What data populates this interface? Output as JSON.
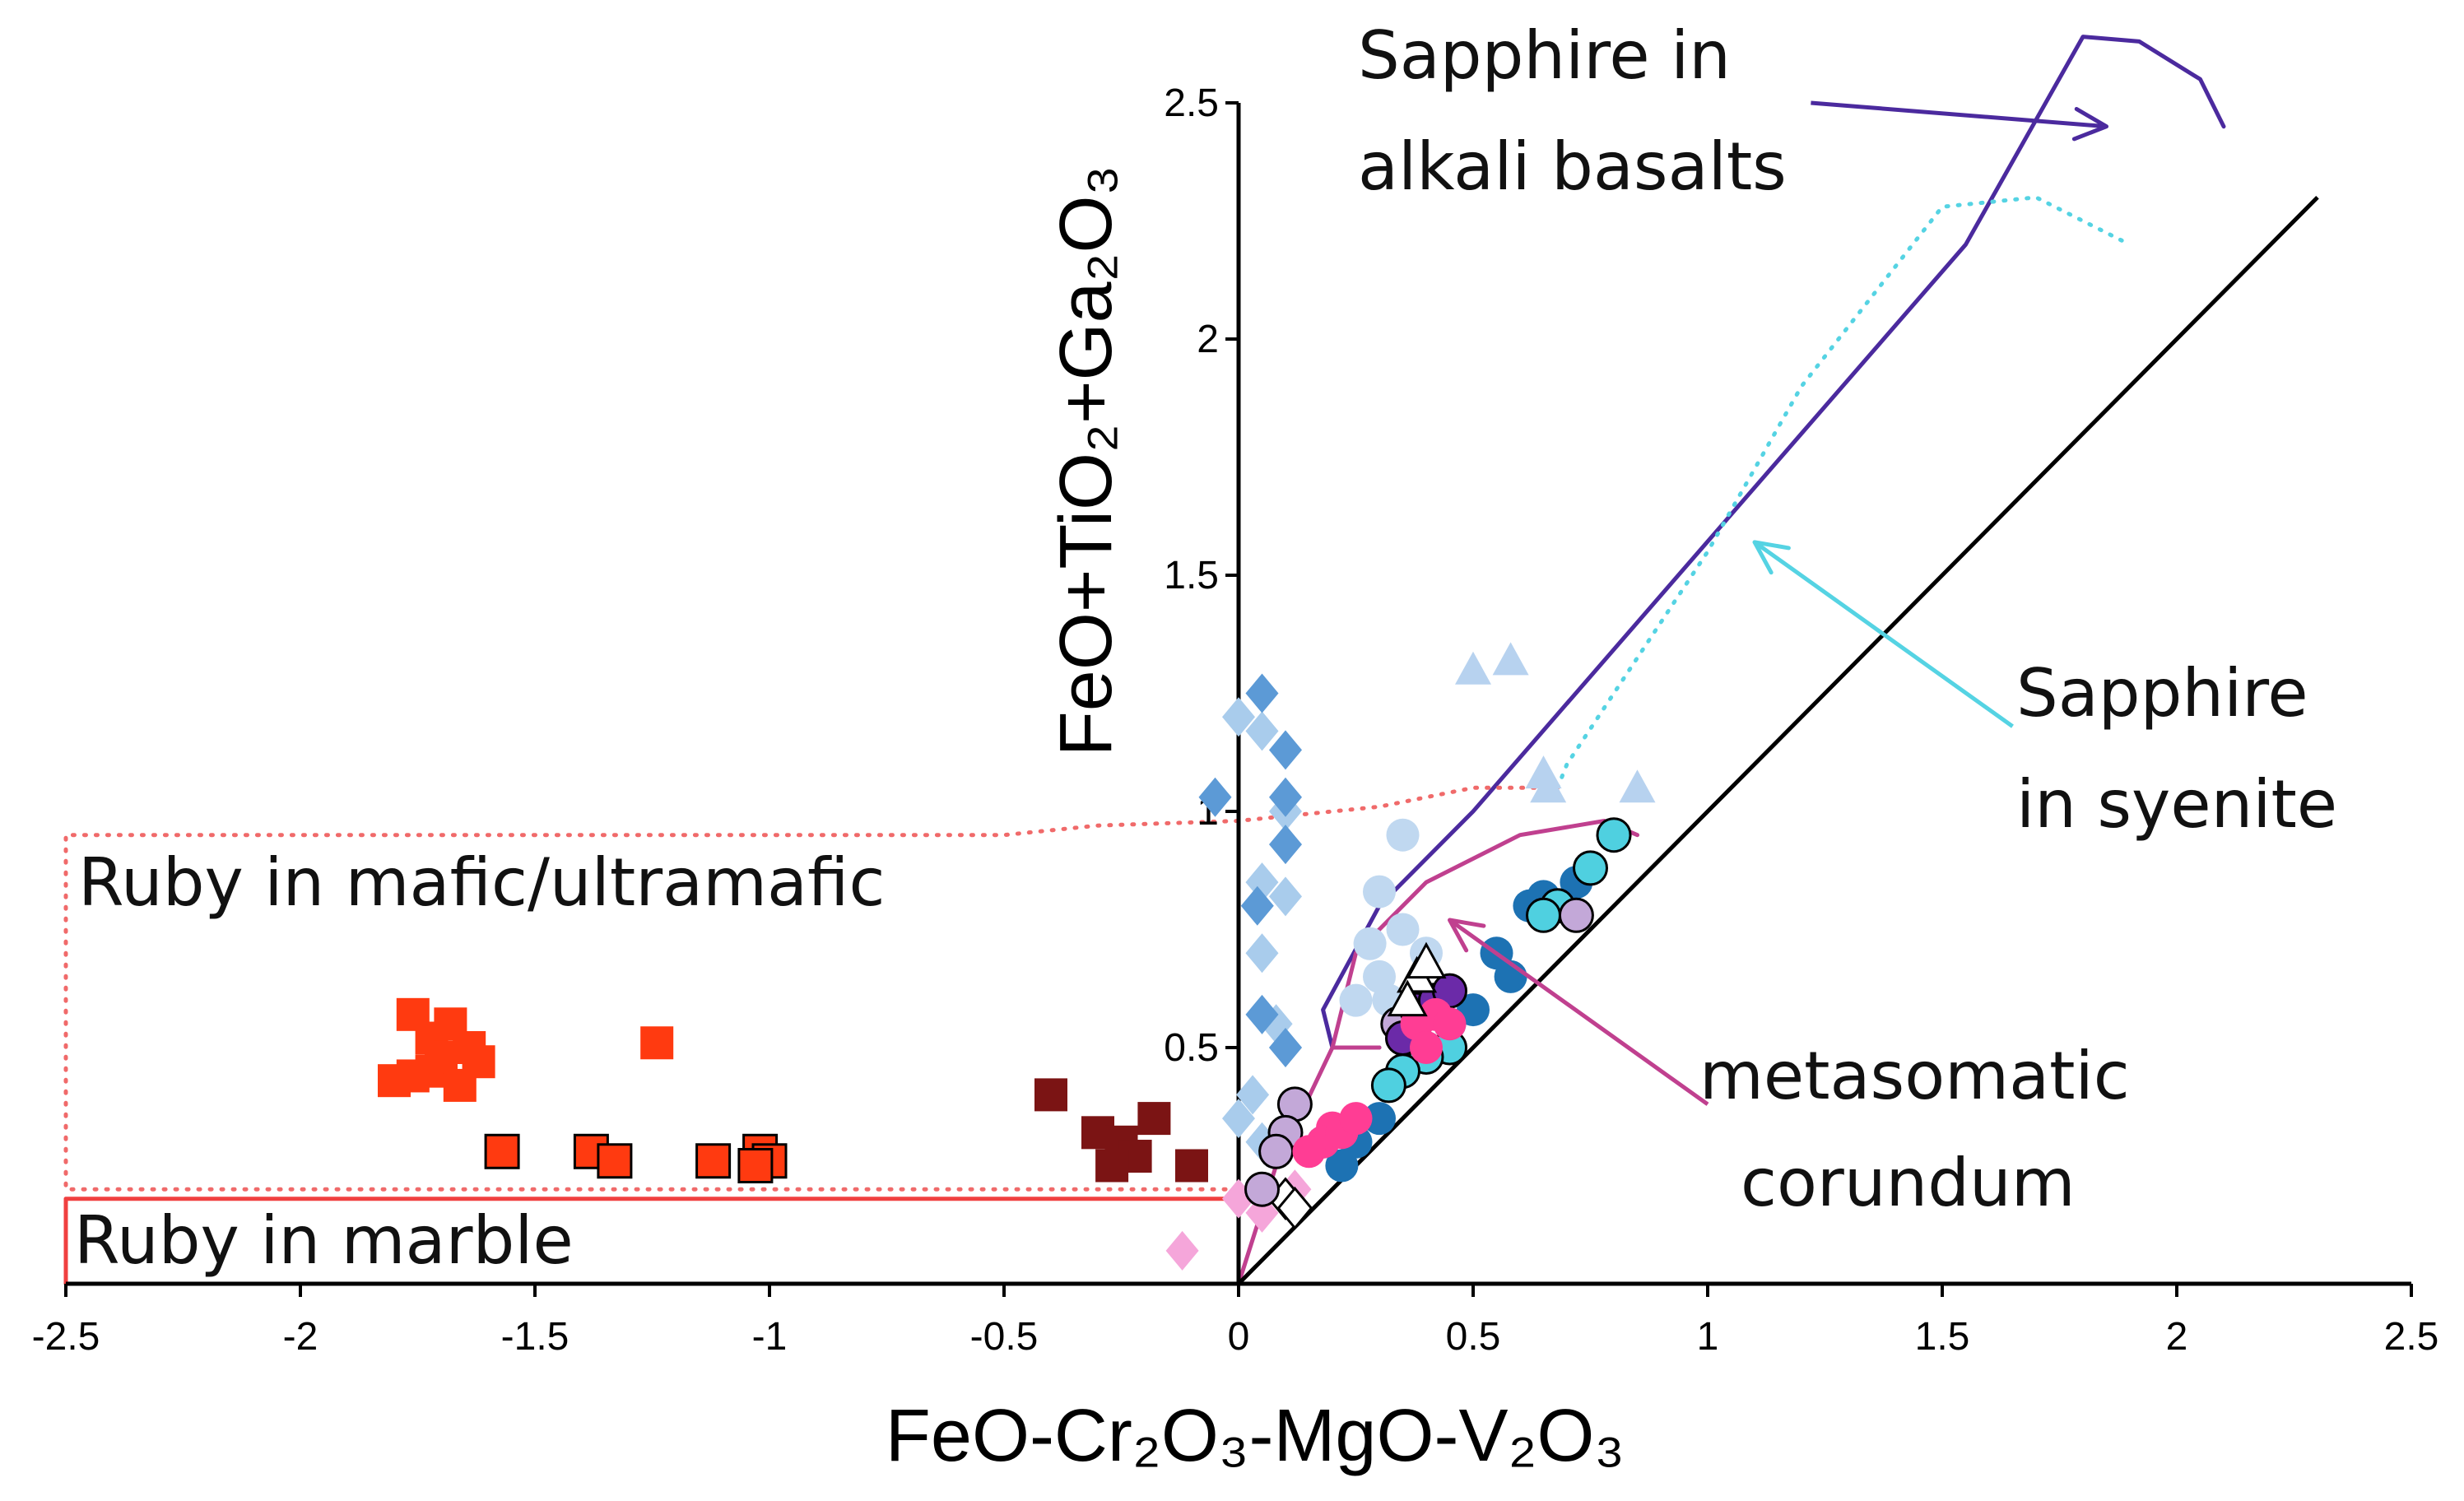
{
  "chart_data": {
    "type": "scatter",
    "xlabel": "FeO-Cr₂O₃-MgO-V₂O₃",
    "ylabel": "FeO+TiO₂+Ga₂O₃",
    "xlim": [
      -2.5,
      2.5
    ],
    "ylim": [
      0,
      2.5
    ],
    "x_ticks": [
      "-2.5",
      "-2",
      "-1.5",
      "-1",
      "-0.5",
      "0",
      "0.5",
      "1",
      "1.5",
      "2",
      "2.5"
    ],
    "y_ticks": [
      "0.5",
      "1",
      "1.5",
      "2",
      "2.5"
    ],
    "reference_line": {
      "slope": 1,
      "intercept": 0,
      "x_range": [
        0,
        2.3
      ]
    },
    "annotations": {
      "sapphire_basalt": [
        "Sapphire in",
        "alkali basalts"
      ],
      "sapphire_syenite": [
        "Sapphire",
        "in syenite"
      ],
      "metasomatic": [
        "metasomatic",
        "corundum"
      ],
      "ruby_mafic": "Ruby in mafic/ultramafic",
      "ruby_marble": "Ruby in marble"
    },
    "regions": [
      {
        "name": "sapphire-alkali-basalts",
        "color": "#4b2a9e",
        "style": "solid",
        "points": [
          [
            0.3,
            0.5
          ],
          [
            0.2,
            0.5
          ],
          [
            0.18,
            0.58
          ],
          [
            0.3,
            0.8
          ],
          [
            0.5,
            1.0
          ],
          [
            1.2,
            1.8
          ],
          [
            1.55,
            2.2
          ],
          [
            1.8,
            2.64
          ],
          [
            1.92,
            2.63
          ],
          [
            2.05,
            2.55
          ],
          [
            2.1,
            2.45
          ]
        ]
      },
      {
        "name": "sapphire-syenite",
        "color": "#55d3e3",
        "style": "dotted",
        "points": [
          [
            0.68,
            1.05
          ],
          [
            0.7,
            1.1
          ],
          [
            1.0,
            1.55
          ],
          [
            1.2,
            1.9
          ],
          [
            1.5,
            2.28
          ],
          [
            1.7,
            2.3
          ],
          [
            1.8,
            2.25
          ],
          [
            1.9,
            2.2
          ]
        ]
      },
      {
        "name": "metasomatic-corundum",
        "color": "#c0408f",
        "style": "solid",
        "points": [
          [
            0.3,
            0.5
          ],
          [
            0.2,
            0.5
          ],
          [
            0.25,
            0.7
          ],
          [
            0.4,
            0.85
          ],
          [
            0.6,
            0.95
          ],
          [
            0.78,
            0.98
          ],
          [
            0.85,
            0.95
          ]
        ]
      },
      {
        "name": "ruby-mafic-ultramafic",
        "color": "#f06a6a",
        "style": "dotted",
        "points": [
          [
            0.68,
            1.05
          ],
          [
            0.5,
            1.05
          ],
          [
            0.3,
            1.01
          ],
          [
            0,
            0.98
          ],
          [
            -0.3,
            0.97
          ],
          [
            -0.5,
            0.95
          ],
          [
            -2.5,
            0.95
          ],
          [
            -2.5,
            0.2
          ],
          [
            -0.1,
            0.2
          ],
          [
            0.05,
            0.2
          ]
        ]
      },
      {
        "name": "ruby-marble",
        "color": "#f04040",
        "style": "solid",
        "points": [
          [
            -2.5,
            0
          ],
          [
            -2.5,
            0.18
          ],
          [
            0.0,
            0.18
          ]
        ]
      },
      {
        "name": "metasomatic-lower-arc",
        "color": "#c0408f",
        "style": "solid",
        "points": [
          [
            0.0,
            0.0
          ],
          [
            0.08,
            0.25
          ],
          [
            0.2,
            0.5
          ]
        ]
      }
    ],
    "arrows": [
      {
        "name": "arrow-basalt",
        "color": "#4b2a9e",
        "from": [
          1.22,
          2.5
        ],
        "to": [
          1.85,
          2.45
        ]
      },
      {
        "name": "arrow-syenite",
        "color": "#55d3e3",
        "from": [
          1.65,
          1.18
        ],
        "to": [
          1.1,
          1.57
        ]
      },
      {
        "name": "arrow-metasomatic",
        "color": "#c0408f",
        "from": [
          1.0,
          0.38
        ],
        "to": [
          0.45,
          0.77
        ]
      }
    ],
    "series": [
      {
        "name": "Ruby marble (bright red)",
        "marker": "square",
        "color": "#ff3a10",
        "stroke": "none",
        "points": [
          [
            -1.76,
            0.57
          ],
          [
            -1.72,
            0.52
          ],
          [
            -1.68,
            0.55
          ],
          [
            -1.64,
            0.5
          ],
          [
            -1.62,
            0.47
          ],
          [
            -1.8,
            0.43
          ],
          [
            -1.72,
            0.45
          ],
          [
            -1.66,
            0.42
          ],
          [
            -1.7,
            0.48
          ],
          [
            -1.24,
            0.51
          ],
          [
            -1.76,
            0.44
          ]
        ]
      },
      {
        "name": "Ruby (outlined squares)",
        "marker": "square",
        "color": "#ff3a10",
        "stroke": "#000",
        "points": [
          [
            -1.57,
            0.28
          ],
          [
            -1.38,
            0.28
          ],
          [
            -1.33,
            0.26
          ],
          [
            -1.12,
            0.26
          ],
          [
            -1.02,
            0.28
          ],
          [
            -1.0,
            0.26
          ],
          [
            -1.03,
            0.25
          ]
        ]
      },
      {
        "name": "Ruby (dark red squares)",
        "marker": "square",
        "color": "#7b1414",
        "stroke": "none",
        "points": [
          [
            -0.4,
            0.4
          ],
          [
            -0.3,
            0.32
          ],
          [
            -0.25,
            0.3
          ],
          [
            -0.22,
            0.27
          ],
          [
            -0.18,
            0.35
          ],
          [
            -0.27,
            0.25
          ],
          [
            -0.1,
            0.25
          ]
        ]
      },
      {
        "name": "Light blue diamonds",
        "marker": "diamond",
        "color": "#a9ccec",
        "stroke": "none",
        "points": [
          [
            0.0,
            1.2
          ],
          [
            0.05,
            1.17
          ],
          [
            0.1,
            1.0
          ],
          [
            0.05,
            0.85
          ],
          [
            0.1,
            0.82
          ],
          [
            0.05,
            0.7
          ],
          [
            0.08,
            0.55
          ],
          [
            0.03,
            0.4
          ],
          [
            0.05,
            0.3
          ],
          [
            0.0,
            0.35
          ],
          [
            0.1,
            0.5
          ]
        ]
      },
      {
        "name": "Blue diamonds",
        "marker": "diamond",
        "color": "#5c9ad6",
        "stroke": "none",
        "points": [
          [
            -0.05,
            1.03
          ],
          [
            0.05,
            1.25
          ],
          [
            0.1,
            1.13
          ],
          [
            0.1,
            1.03
          ],
          [
            0.04,
            0.8
          ],
          [
            0.1,
            0.93
          ],
          [
            0.05,
            0.57
          ],
          [
            0.1,
            0.5
          ]
        ]
      },
      {
        "name": "Pink diamonds",
        "marker": "diamond",
        "color": "#f5a6da",
        "stroke": "none",
        "points": [
          [
            -0.12,
            0.07
          ],
          [
            0.0,
            0.18
          ],
          [
            0.05,
            0.15
          ],
          [
            0.12,
            0.2
          ]
        ]
      },
      {
        "name": "Outlined diamonds",
        "marker": "diamond",
        "color": "#ffffff",
        "stroke": "#000",
        "points": [
          [
            0.1,
            0.18
          ],
          [
            0.12,
            0.16
          ]
        ]
      },
      {
        "name": "Light blue triangles",
        "marker": "triangle",
        "color": "#b7d2ef",
        "stroke": "none",
        "points": [
          [
            0.5,
            1.3
          ],
          [
            0.58,
            1.32
          ],
          [
            0.65,
            1.08
          ],
          [
            0.66,
            1.05
          ],
          [
            0.85,
            1.05
          ]
        ]
      },
      {
        "name": "Light blue circles",
        "marker": "circle",
        "color": "#c0d8f0",
        "stroke": "none",
        "points": [
          [
            0.35,
            0.95
          ],
          [
            0.3,
            0.83
          ],
          [
            0.28,
            0.72
          ],
          [
            0.3,
            0.65
          ],
          [
            0.25,
            0.6
          ],
          [
            0.35,
            0.75
          ],
          [
            0.4,
            0.7
          ],
          [
            0.32,
            0.6
          ],
          [
            0.4,
            0.6
          ]
        ]
      },
      {
        "name": "Dark blue circles",
        "marker": "circle",
        "color": "#1d72b3",
        "stroke": "none",
        "points": [
          [
            0.55,
            0.7
          ],
          [
            0.58,
            0.65
          ],
          [
            0.62,
            0.8
          ],
          [
            0.65,
            0.82
          ],
          [
            0.72,
            0.85
          ],
          [
            0.45,
            0.55
          ],
          [
            0.5,
            0.58
          ],
          [
            0.4,
            0.5
          ],
          [
            0.3,
            0.35
          ],
          [
            0.25,
            0.3
          ],
          [
            0.18,
            0.3
          ],
          [
            0.22,
            0.25
          ]
        ]
      },
      {
        "name": "Cyan circles",
        "marker": "circle",
        "color": "#4fd0e0",
        "stroke": "#000",
        "points": [
          [
            0.8,
            0.95
          ],
          [
            0.75,
            0.88
          ],
          [
            0.68,
            0.8
          ],
          [
            0.65,
            0.78
          ],
          [
            0.45,
            0.5
          ],
          [
            0.4,
            0.48
          ],
          [
            0.35,
            0.45
          ],
          [
            0.32,
            0.42
          ]
        ]
      },
      {
        "name": "Lavender circles",
        "marker": "circle",
        "color": "#c3a8d8",
        "stroke": "#000",
        "points": [
          [
            0.12,
            0.38
          ],
          [
            0.1,
            0.32
          ],
          [
            0.08,
            0.28
          ],
          [
            0.05,
            0.2
          ],
          [
            0.38,
            0.6
          ],
          [
            0.34,
            0.55
          ],
          [
            0.72,
            0.78
          ]
        ]
      },
      {
        "name": "Purple circles",
        "marker": "circle",
        "color": "#6b2aa8",
        "stroke": "#000",
        "points": [
          [
            0.38,
            0.58
          ],
          [
            0.42,
            0.6
          ],
          [
            0.45,
            0.62
          ],
          [
            0.35,
            0.52
          ]
        ]
      },
      {
        "name": "Magenta circles",
        "marker": "circle",
        "color": "#ff3d94",
        "stroke": "none",
        "points": [
          [
            0.38,
            0.55
          ],
          [
            0.42,
            0.57
          ],
          [
            0.45,
            0.55
          ],
          [
            0.4,
            0.5
          ],
          [
            0.2,
            0.33
          ],
          [
            0.18,
            0.3
          ],
          [
            0.22,
            0.32
          ],
          [
            0.15,
            0.28
          ],
          [
            0.25,
            0.35
          ]
        ]
      },
      {
        "name": "Open triangles",
        "marker": "triangle",
        "color": "#ffffff",
        "stroke": "#000",
        "points": [
          [
            0.38,
            0.65
          ],
          [
            0.4,
            0.68
          ],
          [
            0.36,
            0.6
          ]
        ]
      }
    ]
  }
}
